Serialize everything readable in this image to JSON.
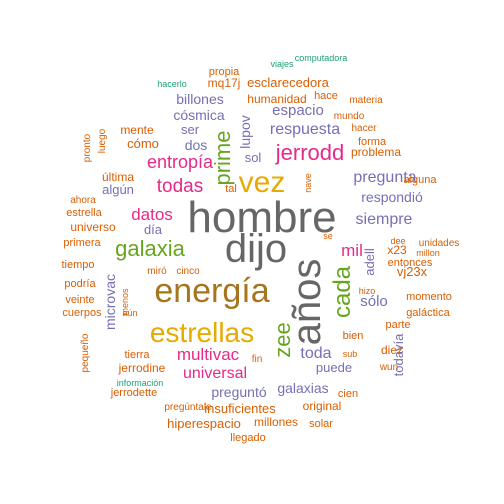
{
  "colors": {
    "gray": "#666666",
    "olive": "#a6761d",
    "gold": "#e6ab02",
    "green": "#66a61e",
    "magenta": "#e7298a",
    "purple": "#7570b3",
    "orange": "#d95f02",
    "teal": "#1b9e77"
  },
  "words": [
    {
      "text": "hombre",
      "color": "gray"
    },
    {
      "text": "dijo",
      "color": "gray"
    },
    {
      "text": "años",
      "color": "gray"
    },
    {
      "text": "energía",
      "color": "olive"
    },
    {
      "text": "vez",
      "color": "gold"
    },
    {
      "text": "estrellas",
      "color": "gold"
    },
    {
      "text": "galaxia",
      "color": "green"
    },
    {
      "text": "cada",
      "color": "green"
    },
    {
      "text": "prime",
      "color": "green"
    },
    {
      "text": "zee",
      "color": "green"
    },
    {
      "text": "jerrodd",
      "color": "magenta"
    },
    {
      "text": "todas",
      "color": "magenta"
    },
    {
      "text": "entropía",
      "color": "magenta"
    },
    {
      "text": "multivac",
      "color": "magenta"
    },
    {
      "text": "datos",
      "color": "magenta"
    },
    {
      "text": "mil",
      "color": "magenta"
    },
    {
      "text": "universal",
      "color": "magenta"
    },
    {
      "text": "respuesta",
      "color": "purple"
    },
    {
      "text": "pregunta",
      "color": "purple"
    },
    {
      "text": "espacio",
      "color": "purple"
    },
    {
      "text": "siempre",
      "color": "purple"
    },
    {
      "text": "respondió",
      "color": "purple"
    },
    {
      "text": "cósmica",
      "color": "purple"
    },
    {
      "text": "billones",
      "color": "purple"
    },
    {
      "text": "toda",
      "color": "purple"
    },
    {
      "text": "sólo",
      "color": "purple"
    },
    {
      "text": "todavía",
      "color": "purple"
    },
    {
      "text": "galaxias",
      "color": "purple"
    },
    {
      "text": "puede",
      "color": "purple"
    },
    {
      "text": "preguntó",
      "color": "purple"
    },
    {
      "text": "dos",
      "color": "purple"
    },
    {
      "text": "ser",
      "color": "purple"
    },
    {
      "text": "lupov",
      "color": "purple"
    },
    {
      "text": "sol",
      "color": "purple"
    },
    {
      "text": "algún",
      "color": "purple"
    },
    {
      "text": "día",
      "color": "purple"
    },
    {
      "text": "microvac",
      "color": "purple"
    },
    {
      "text": "adell",
      "color": "purple"
    },
    {
      "text": "vj23x",
      "color": "orange"
    },
    {
      "text": "insuficientes",
      "color": "orange"
    },
    {
      "text": "hiperespacio",
      "color": "orange"
    },
    {
      "text": "jerrodine",
      "color": "orange"
    },
    {
      "text": "universo",
      "color": "orange"
    },
    {
      "text": "esclarecedora",
      "color": "orange"
    },
    {
      "text": "humanidad",
      "color": "orange"
    },
    {
      "text": "mq17j",
      "color": "orange"
    },
    {
      "text": "cómo",
      "color": "orange"
    },
    {
      "text": "mente",
      "color": "orange"
    },
    {
      "text": "última",
      "color": "orange"
    },
    {
      "text": "estrella",
      "color": "orange"
    },
    {
      "text": "primera",
      "color": "orange"
    },
    {
      "text": "tiempo",
      "color": "orange"
    },
    {
      "text": "podría",
      "color": "orange"
    },
    {
      "text": "veinte",
      "color": "orange"
    },
    {
      "text": "cuerpos",
      "color": "orange"
    },
    {
      "text": "pequeño",
      "color": "orange"
    },
    {
      "text": "jerrodette",
      "color": "orange"
    },
    {
      "text": "pregúntale",
      "color": "orange"
    },
    {
      "text": "llegado",
      "color": "orange"
    },
    {
      "text": "millones",
      "color": "orange"
    },
    {
      "text": "solar",
      "color": "orange"
    },
    {
      "text": "original",
      "color": "orange"
    },
    {
      "text": "cien",
      "color": "orange"
    },
    {
      "text": "wun",
      "color": "orange"
    },
    {
      "text": "diez",
      "color": "orange"
    },
    {
      "text": "galáctica",
      "color": "orange"
    },
    {
      "text": "parte",
      "color": "orange"
    },
    {
      "text": "momento",
      "color": "orange"
    },
    {
      "text": "entonces",
      "color": "orange"
    },
    {
      "text": "x23",
      "color": "orange"
    },
    {
      "text": "unidades",
      "color": "orange"
    },
    {
      "text": "millon",
      "color": "orange"
    },
    {
      "text": "dee",
      "color": "orange"
    },
    {
      "text": "alguna",
      "color": "orange"
    },
    {
      "text": "problema",
      "color": "orange"
    },
    {
      "text": "forma",
      "color": "orange"
    },
    {
      "text": "hacer",
      "color": "orange"
    },
    {
      "text": "mundo",
      "color": "orange"
    },
    {
      "text": "materia",
      "color": "orange"
    },
    {
      "text": "hace",
      "color": "orange"
    },
    {
      "text": "propia",
      "color": "orange"
    },
    {
      "text": "pronto",
      "color": "orange"
    },
    {
      "text": "luego",
      "color": "orange"
    },
    {
      "text": "ahora",
      "color": "orange"
    },
    {
      "text": "menos",
      "color": "orange"
    },
    {
      "text": "aún",
      "color": "orange"
    },
    {
      "text": "miró",
      "color": "orange"
    },
    {
      "text": "cinco",
      "color": "orange"
    },
    {
      "text": "tierra",
      "color": "orange"
    },
    {
      "text": "fin",
      "color": "orange"
    },
    {
      "text": "sub",
      "color": "orange"
    },
    {
      "text": "bien",
      "color": "orange"
    },
    {
      "text": "hizo",
      "color": "orange"
    },
    {
      "text": "se",
      "color": "orange"
    },
    {
      "text": "tal",
      "color": "orange"
    },
    {
      "text": "nave",
      "color": "orange"
    },
    {
      "text": "viajes",
      "color": "teal"
    },
    {
      "text": "computadora",
      "color": "teal"
    },
    {
      "text": "hacerlo",
      "color": "teal"
    },
    {
      "text": "información",
      "color": "teal"
    }
  ]
}
